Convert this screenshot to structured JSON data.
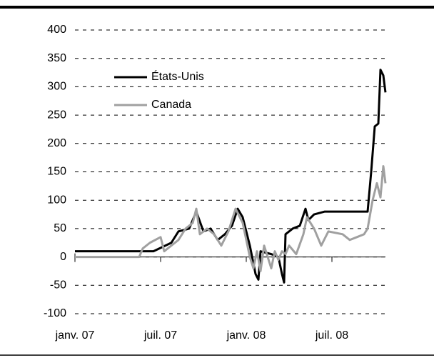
{
  "chart_data": {
    "type": "line",
    "xlim": [
      0,
      21.75
    ],
    "xticks": [
      {
        "value": 0,
        "label": "janv. 07"
      },
      {
        "value": 6,
        "label": "juil. 07"
      },
      {
        "value": 12,
        "label": "janv. 08"
      },
      {
        "value": 18,
        "label": "juil. 08"
      }
    ],
    "ylim": [
      -100,
      400
    ],
    "yticks": [
      -100,
      -50,
      0,
      50,
      100,
      150,
      200,
      250,
      300,
      350,
      400
    ],
    "grid": true,
    "legend": "upper left",
    "series": [
      {
        "name": "États-Unis",
        "color": "#000000",
        "x": [
          0,
          5.5,
          6.75,
          7.25,
          8,
          8.5,
          9,
          9.5,
          10,
          10.5,
          11,
          11.4,
          11.75,
          12.25,
          12.65,
          12.85,
          13,
          13.75,
          14.25,
          14.5,
          14.65,
          14.75,
          15.25,
          15.75,
          16.15,
          16.35,
          16.75,
          17.5,
          20.5,
          20.75,
          21,
          21.25,
          21.4,
          21.6,
          21.75
        ],
        "values": [
          10,
          10,
          25,
          45,
          50,
          80,
          45,
          50,
          30,
          40,
          55,
          85,
          70,
          20,
          -30,
          -40,
          10,
          5,
          0,
          -30,
          -45,
          40,
          50,
          55,
          85,
          65,
          75,
          80,
          80,
          150,
          230,
          235,
          330,
          320,
          290
        ]
      },
      {
        "name": "Canada",
        "color": "#a0a0a0",
        "x": [
          0,
          4.5,
          4.75,
          5.25,
          6,
          6.25,
          6.75,
          7.25,
          7.75,
          8.25,
          8.5,
          8.75,
          9.25,
          9.75,
          10.25,
          10.75,
          11.25,
          11.75,
          12,
          12.25,
          12.5,
          12.75,
          13,
          13.25,
          13.75,
          14,
          14.25,
          14.5,
          14.75,
          15,
          15.5,
          16,
          16.25,
          16.75,
          17.25,
          17.75,
          18.75,
          19.25,
          19.75,
          20.25,
          20.5,
          20.85,
          21.15,
          21.4,
          21.6,
          21.75
        ],
        "values": [
          0,
          0,
          15,
          25,
          35,
          10,
          20,
          30,
          50,
          60,
          85,
          40,
          50,
          40,
          20,
          45,
          85,
          60,
          30,
          0,
          -20,
          10,
          -25,
          20,
          -20,
          10,
          -5,
          10,
          5,
          20,
          5,
          40,
          70,
          50,
          20,
          45,
          40,
          30,
          35,
          40,
          50,
          100,
          130,
          105,
          160,
          130
        ]
      }
    ]
  }
}
